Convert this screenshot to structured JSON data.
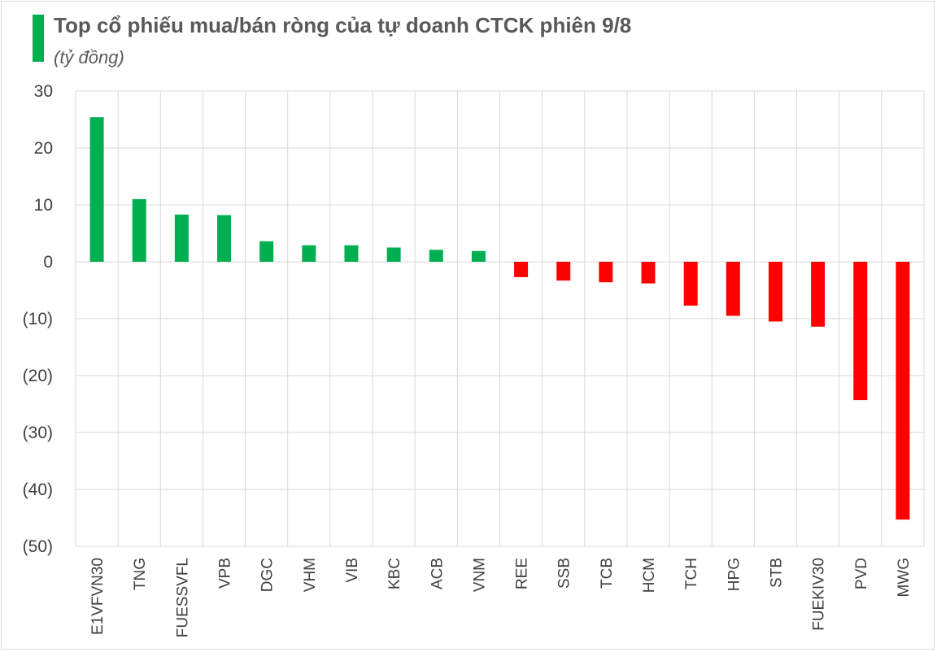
{
  "header": {
    "title": "Top cổ phiếu mua/bán ròng của tự doanh CTCK phiên 9/8",
    "subtitle": "(tỷ đồng)"
  },
  "colors": {
    "positive": "#00b050",
    "negative": "#ff0000",
    "grid": "#d9d9d9",
    "text": "#404040"
  },
  "chart_data": {
    "type": "bar",
    "title": "Top cổ phiếu mua/bán ròng của tự doanh CTCK phiên 9/8",
    "subtitle": "(tỷ đồng)",
    "xlabel": "",
    "ylabel": "",
    "ylim": [
      -50,
      30
    ],
    "y_ticks": [
      30,
      20,
      10,
      0,
      -10,
      -20,
      -30,
      -40,
      -50
    ],
    "y_tick_labels": [
      "30",
      "20",
      "10",
      "0",
      "(10)",
      "(20)",
      "(30)",
      "(40)",
      "(50)"
    ],
    "grid": true,
    "categories": [
      "E1VFVN30",
      "TNG",
      "FUESSVFL",
      "VPB",
      "DGC",
      "VHM",
      "VIB",
      "KBC",
      "ACB",
      "VNM",
      "REE",
      "SSB",
      "TCB",
      "HCM",
      "TCH",
      "HPG",
      "STB",
      "FUEKIV30",
      "PVD",
      "MWG"
    ],
    "values": [
      25.4,
      11.0,
      8.3,
      8.2,
      3.6,
      2.9,
      2.9,
      2.5,
      2.1,
      1.9,
      -2.7,
      -3.3,
      -3.6,
      -3.8,
      -7.7,
      -9.5,
      -10.5,
      -11.4,
      -24.3,
      -45.3
    ]
  }
}
